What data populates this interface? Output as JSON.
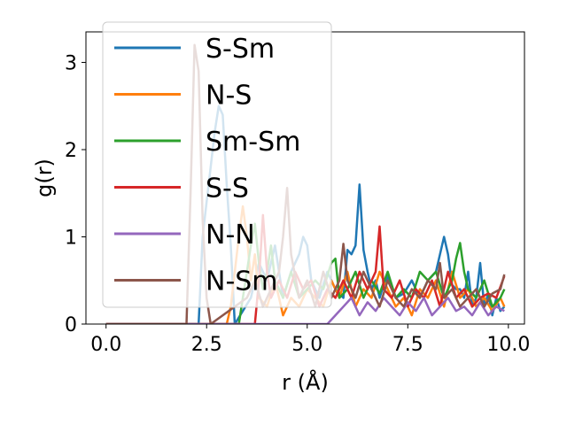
{
  "chart_data": {
    "type": "line",
    "xlabel": "r (Å)",
    "ylabel": "g(r)",
    "xlim": [
      -0.5,
      10.4
    ],
    "ylim": [
      0,
      3.35
    ],
    "xticks": [
      0.0,
      2.5,
      5.0,
      7.5,
      10.0
    ],
    "xtick_labels": [
      "0.0",
      "2.5",
      "5.0",
      "7.5",
      "10.0"
    ],
    "yticks": [
      0,
      1,
      2,
      3
    ],
    "ytick_labels": [
      "0",
      "1",
      "2",
      "3"
    ],
    "grid": false,
    "legend_position": "top-left",
    "series": [
      {
        "name": "S-Sm",
        "color": "#1f77b4",
        "x": [
          0,
          2.3,
          2.4,
          2.5,
          2.6,
          2.7,
          2.8,
          2.9,
          3.0,
          3.1,
          3.2,
          3.6,
          3.8,
          4.0,
          4.2,
          4.4,
          4.6,
          4.8,
          4.9,
          5.0,
          5.1,
          5.3,
          5.5,
          5.7,
          5.9,
          6.0,
          6.1,
          6.2,
          6.3,
          6.4,
          6.5,
          6.6,
          6.7,
          6.8,
          6.9,
          7.0,
          7.2,
          7.4,
          7.6,
          7.8,
          8.0,
          8.2,
          8.4,
          8.5,
          8.6,
          8.7,
          8.8,
          8.9,
          9.0,
          9.1,
          9.2,
          9.3,
          9.4,
          9.5,
          9.6,
          9.7,
          9.8,
          9.9
        ],
        "y": [
          0,
          0,
          1.0,
          1.4,
          1.8,
          2.2,
          2.5,
          2.4,
          1.6,
          0.9,
          0,
          0.3,
          0.7,
          0.5,
          0.9,
          0.3,
          0.6,
          0.8,
          1.0,
          0.9,
          0.5,
          0.3,
          0.6,
          0.4,
          0.3,
          0.85,
          0.8,
          0.9,
          1.6,
          0.85,
          0.6,
          0.4,
          0.5,
          0.3,
          0.45,
          0.55,
          0.3,
          0.35,
          0.5,
          0.3,
          0.5,
          0.6,
          1.0,
          0.8,
          0.45,
          0.4,
          0.4,
          0.3,
          0.6,
          0.2,
          0.3,
          0.7,
          0.2,
          0.35,
          0.1,
          0.3,
          0.15,
          0.2
        ]
      },
      {
        "name": "N-S",
        "color": "#ff7f0e",
        "x": [
          0,
          3.0,
          3.1,
          3.2,
          3.3,
          3.4,
          3.5,
          3.6,
          3.7,
          3.8,
          4.0,
          4.2,
          4.4,
          4.6,
          4.8,
          5.0,
          5.2,
          5.4,
          5.6,
          5.8,
          6.0,
          6.2,
          6.4,
          6.6,
          6.8,
          7.0,
          7.2,
          7.4,
          7.6,
          7.8,
          8.0,
          8.2,
          8.4,
          8.6,
          8.8,
          9.0,
          9.2,
          9.4,
          9.6,
          9.8,
          9.9
        ],
        "y": [
          0,
          0,
          0.2,
          0.6,
          1.0,
          1.35,
          1.0,
          0.5,
          0.8,
          0.3,
          0.2,
          0.5,
          0.1,
          0.3,
          0.2,
          0.4,
          0.3,
          0.2,
          0.5,
          0.3,
          0.6,
          0.2,
          0.4,
          0.3,
          0.6,
          0.4,
          0.2,
          0.3,
          0.1,
          0.4,
          0.3,
          0.5,
          0.2,
          0.6,
          0.3,
          0.4,
          0.2,
          0.3,
          0.15,
          0.3,
          0.2
        ]
      },
      {
        "name": "Sm-Sm",
        "color": "#2ca02c",
        "x": [
          0,
          3.3,
          3.4,
          3.5,
          3.6,
          3.7,
          3.8,
          3.9,
          4.0,
          4.1,
          4.2,
          4.4,
          4.6,
          4.8,
          5.0,
          5.2,
          5.4,
          5.6,
          5.7,
          5.8,
          6.0,
          6.2,
          6.4,
          6.6,
          6.8,
          7.0,
          7.2,
          7.4,
          7.6,
          7.8,
          8.0,
          8.2,
          8.4,
          8.6,
          8.7,
          8.8,
          8.9,
          9.0,
          9.2,
          9.4,
          9.6,
          9.8,
          9.9
        ],
        "y": [
          0,
          0,
          0.3,
          0.6,
          0.9,
          1.15,
          0.7,
          0.4,
          0.6,
          0.9,
          0.5,
          0.3,
          0.6,
          0.3,
          0.4,
          0.5,
          0.4,
          0.7,
          0.75,
          0.3,
          0.4,
          0.6,
          0.3,
          0.5,
          0.35,
          0.6,
          0.3,
          0.4,
          0.3,
          0.6,
          0.5,
          0.6,
          0.3,
          0.5,
          0.75,
          0.93,
          0.6,
          0.4,
          0.3,
          0.5,
          0.2,
          0.3,
          0.4
        ]
      },
      {
        "name": "S-S",
        "color": "#d62728",
        "x": [
          0,
          3.7,
          3.8,
          3.9,
          4.0,
          4.1,
          4.3,
          4.5,
          4.7,
          4.9,
          5.1,
          5.3,
          5.5,
          5.7,
          5.9,
          6.1,
          6.3,
          6.5,
          6.7,
          6.8,
          6.9,
          7.1,
          7.3,
          7.5,
          7.7,
          7.9,
          8.1,
          8.3,
          8.5,
          8.7,
          8.9,
          9.1,
          9.3,
          9.5,
          9.7,
          9.9
        ],
        "y": [
          0,
          0,
          0.5,
          1.25,
          0.6,
          0.3,
          0.5,
          0.3,
          0.6,
          0.4,
          0.5,
          0.2,
          0.4,
          0.3,
          0.5,
          0.3,
          0.6,
          0.4,
          0.6,
          1.12,
          0.4,
          0.3,
          0.5,
          0.2,
          0.4,
          0.3,
          0.5,
          0.2,
          0.6,
          0.3,
          0.4,
          0.2,
          0.3,
          0.35,
          0.3,
          0.55
        ]
      },
      {
        "name": "N-N",
        "color": "#9467bd",
        "x": [
          0,
          5.5,
          5.7,
          5.9,
          6.1,
          6.3,
          6.5,
          6.7,
          6.9,
          7.1,
          7.3,
          7.5,
          7.7,
          7.9,
          8.1,
          8.3,
          8.5,
          8.7,
          8.9,
          9.1,
          9.3,
          9.5,
          9.7,
          9.9
        ],
        "y": [
          0,
          0,
          0.1,
          0.2,
          0.3,
          0.1,
          0.25,
          0.15,
          0.3,
          0.2,
          0.1,
          0.25,
          0.15,
          0.3,
          0.1,
          0.2,
          0.3,
          0.15,
          0.2,
          0.1,
          0.25,
          0.1,
          0.2,
          0.15
        ]
      },
      {
        "name": "N-Sm",
        "color": "#8c564b",
        "x": [
          0,
          2.0,
          2.1,
          2.2,
          2.3,
          2.4,
          2.5,
          2.6,
          3.5,
          3.7,
          3.9,
          4.1,
          4.3,
          4.4,
          4.5,
          4.6,
          4.8,
          5.0,
          5.2,
          5.4,
          5.6,
          5.8,
          5.9,
          6.0,
          6.2,
          6.4,
          6.6,
          6.8,
          7.0,
          7.2,
          7.4,
          7.6,
          7.8,
          8.0,
          8.2,
          8.3,
          8.4,
          8.6,
          8.8,
          9.0,
          9.2,
          9.4,
          9.6,
          9.8,
          9.9
        ],
        "y": [
          0,
          0,
          1.5,
          3.2,
          2.9,
          1.2,
          0.3,
          0,
          0.3,
          0.5,
          0.2,
          0.4,
          0.6,
          1.0,
          1.56,
          0.8,
          0.3,
          0.5,
          0.2,
          0.6,
          0.3,
          0.5,
          0.92,
          0.5,
          0.3,
          0.6,
          0.4,
          0.2,
          0.5,
          0.3,
          0.2,
          0.4,
          0.3,
          0.5,
          0.4,
          0.7,
          0.3,
          0.4,
          0.2,
          0.3,
          0.4,
          0.2,
          0.35,
          0.4,
          0.57
        ]
      }
    ]
  }
}
